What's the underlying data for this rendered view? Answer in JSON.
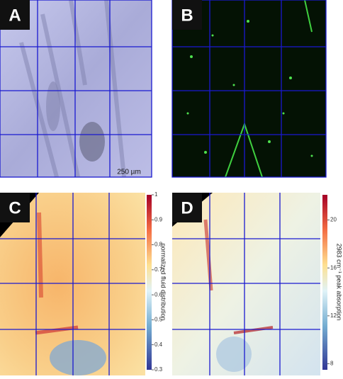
{
  "panels": [
    {
      "label": "A",
      "scale_bar": "250 µm"
    },
    {
      "label": "B"
    },
    {
      "label": "C",
      "colorbar": {
        "label": "normalized fluid distribution",
        "lim": [
          0.3,
          1
        ],
        "ticks": [
          0.3,
          0.4,
          0.5,
          0.6,
          0.7,
          0.8,
          0.9,
          1
        ]
      }
    },
    {
      "label": "D",
      "colorbar": {
        "label": "2983 cm⁻¹ peak absorption",
        "lim": [
          7.5,
          22.1
        ],
        "ticks": [
          8,
          12,
          16,
          20
        ]
      }
    }
  ]
}
